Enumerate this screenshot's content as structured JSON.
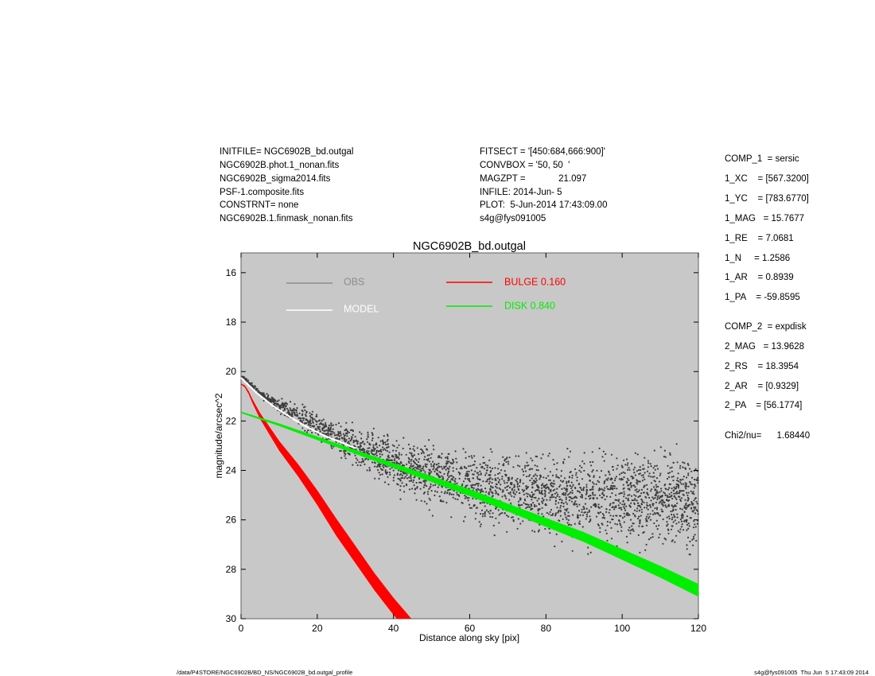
{
  "header": {
    "left": [
      "INITFILE= NGC6902B_bd.outgal",
      "NGC6902B.phot.1_nonan.fits",
      "NGC6902B_sigma2014.fits",
      "PSF-1.composite.fits",
      "CONSTRNT= none",
      "NGC6902B.1.finmask_nonan.fits"
    ],
    "middle": [
      "FITSECT = '[450:684,666:900]'",
      "CONVBOX = '50, 50  '",
      "MAGZPT =             21.097",
      "INFILE: 2014-Jun- 5",
      "PLOT:  5-Jun-2014 17:43:09.00",
      "s4g@fys091005"
    ]
  },
  "side_panel": {
    "comp1": [
      "COMP_1  = sersic",
      "1_XC    = [567.3200]",
      "1_YC    = [783.6770]",
      "1_MAG   = 15.7677",
      "1_RE    = 7.0681",
      "1_N     = 1.2586",
      "1_AR    = 0.8939",
      "1_PA    = -59.8595"
    ],
    "comp2": [
      "COMP_2  = expdisk",
      "2_MAG   = 13.9628",
      "2_RS    = 18.3954",
      "2_AR    = [0.9329]",
      "2_PA    = [56.1774]"
    ],
    "chi": "Chi2/nu=      1.68440"
  },
  "footer": {
    "path": "/data/P4STORE/NGC6902B/BD_NS/NGC6902B_bd.outgal_profile",
    "stamp": "s4g@fys091005  Thu Jun  5 17:43:09 2014"
  },
  "colors": {
    "plot_bg": "#c8c8c8",
    "obs": "#3c3c3c",
    "obs_legend": "#8c8c8c",
    "model": "#ffffff",
    "bulge": "#ff0000",
    "disk": "#00ee00"
  },
  "chart_data": {
    "type": "scatter",
    "title": "NGC6902B_bd.outgal",
    "xlabel": "Distance along sky [pix]",
    "ylabel": "magnitude/arcsec^2",
    "xlim": [
      0,
      120
    ],
    "ylim": [
      30,
      15.2
    ],
    "y_inverted": true,
    "xticks": [
      0,
      20,
      40,
      60,
      80,
      100,
      120
    ],
    "yticks": [
      16,
      18,
      20,
      22,
      24,
      26,
      28,
      30
    ],
    "grid": false,
    "legend": [
      {
        "label": "OBS",
        "color": "#8c8c8c"
      },
      {
        "label": "MODEL",
        "color": "#ffffff"
      },
      {
        "label": "BULGE  0.160",
        "color": "#ff0000"
      },
      {
        "label": "DISK  0.840",
        "color": "#00ee00"
      }
    ],
    "series": [
      {
        "name": "OBS",
        "style": "scatter",
        "x": [
          0.3,
          1,
          2,
          3,
          4,
          5,
          6,
          8,
          10,
          12,
          15,
          20,
          25,
          30,
          35,
          40,
          45,
          50,
          55,
          60,
          65,
          70,
          75,
          80,
          85,
          90,
          95,
          100,
          105,
          110,
          115,
          120
        ],
        "y": [
          20.2,
          20.3,
          20.45,
          20.6,
          20.7,
          20.85,
          21.0,
          21.2,
          21.4,
          21.55,
          21.75,
          22.2,
          22.6,
          23.0,
          23.35,
          23.7,
          24.0,
          24.2,
          24.4,
          24.55,
          24.7,
          24.8,
          24.9,
          25.0,
          25.05,
          25.1,
          25.15,
          25.2,
          25.2,
          25.25,
          25.25,
          25.3
        ],
        "scatter_halfwidth": [
          0.05,
          0.05,
          0.08,
          0.1,
          0.1,
          0.12,
          0.15,
          0.2,
          0.3,
          0.35,
          0.45,
          0.5,
          0.6,
          0.7,
          0.8,
          0.9,
          1.0,
          1.1,
          1.2,
          1.3,
          1.35,
          1.4,
          1.45,
          1.5,
          1.55,
          1.6,
          1.65,
          1.7,
          1.75,
          1.8,
          1.85,
          1.9
        ]
      },
      {
        "name": "MODEL",
        "style": "line",
        "x": [
          0,
          2,
          4,
          6,
          8,
          10,
          14,
          18,
          22,
          26,
          30
        ],
        "y": [
          20.25,
          20.55,
          20.85,
          21.1,
          21.35,
          21.55,
          21.95,
          22.3,
          22.6,
          22.85,
          23.1
        ]
      },
      {
        "name": "BULGE  0.160",
        "style": "band",
        "x": [
          0,
          1,
          2,
          3,
          5,
          10,
          15,
          20,
          25,
          30,
          35,
          40,
          45
        ],
        "y": [
          20.5,
          20.6,
          20.85,
          21.2,
          21.8,
          23.0,
          24.0,
          25.1,
          26.3,
          27.4,
          28.5,
          29.5,
          30.4
        ],
        "halfwidth": [
          0.02,
          0.04,
          0.06,
          0.08,
          0.12,
          0.2,
          0.25,
          0.3,
          0.35,
          0.35,
          0.35,
          0.35,
          0.35
        ]
      },
      {
        "name": "DISK  0.840",
        "style": "band",
        "x": [
          0,
          10,
          20,
          30,
          40,
          50,
          60,
          70,
          80,
          90,
          100,
          110,
          120
        ],
        "y": [
          21.65,
          22.15,
          22.7,
          23.25,
          23.8,
          24.35,
          24.9,
          25.5,
          26.1,
          26.7,
          27.4,
          28.1,
          28.85
        ],
        "halfwidth": [
          0.03,
          0.05,
          0.07,
          0.08,
          0.1,
          0.12,
          0.14,
          0.16,
          0.18,
          0.2,
          0.22,
          0.24,
          0.26
        ]
      }
    ]
  }
}
